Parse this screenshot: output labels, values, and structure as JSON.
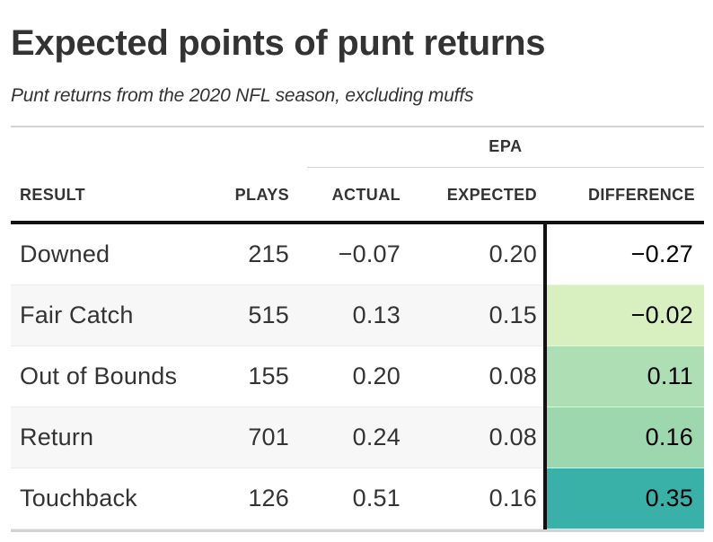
{
  "chart_data": {
    "type": "table",
    "title": "Expected points of punt returns",
    "subtitle": "Punt returns from the 2020 NFL season, excluding muffs",
    "spanner_label": "EPA",
    "columns": [
      "RESULT",
      "PLAYS",
      "ACTUAL",
      "EXPECTED",
      "DIFFERENCE"
    ],
    "rows": [
      {
        "result": "Downed",
        "plays": "215",
        "actual": "−0.07",
        "expected": "0.20",
        "difference": "−0.27",
        "difference_value": -0.27,
        "color": "#ffffff"
      },
      {
        "result": "Fair Catch",
        "plays": "515",
        "actual": "0.13",
        "expected": "0.15",
        "difference": "−0.02",
        "difference_value": -0.02,
        "color": "#d8f0bf"
      },
      {
        "result": "Out of Bounds",
        "plays": "155",
        "actual": "0.20",
        "expected": "0.08",
        "difference": "0.11",
        "difference_value": 0.11,
        "color": "#aedeb3"
      },
      {
        "result": "Return",
        "plays": "701",
        "actual": "0.24",
        "expected": "0.08",
        "difference": "0.16",
        "difference_value": 0.16,
        "color": "#9dd7ad"
      },
      {
        "result": "Touchback",
        "plays": "126",
        "actual": "0.51",
        "expected": "0.16",
        "difference": "0.35",
        "difference_value": 0.35,
        "color": "#3ab1a8"
      }
    ]
  }
}
